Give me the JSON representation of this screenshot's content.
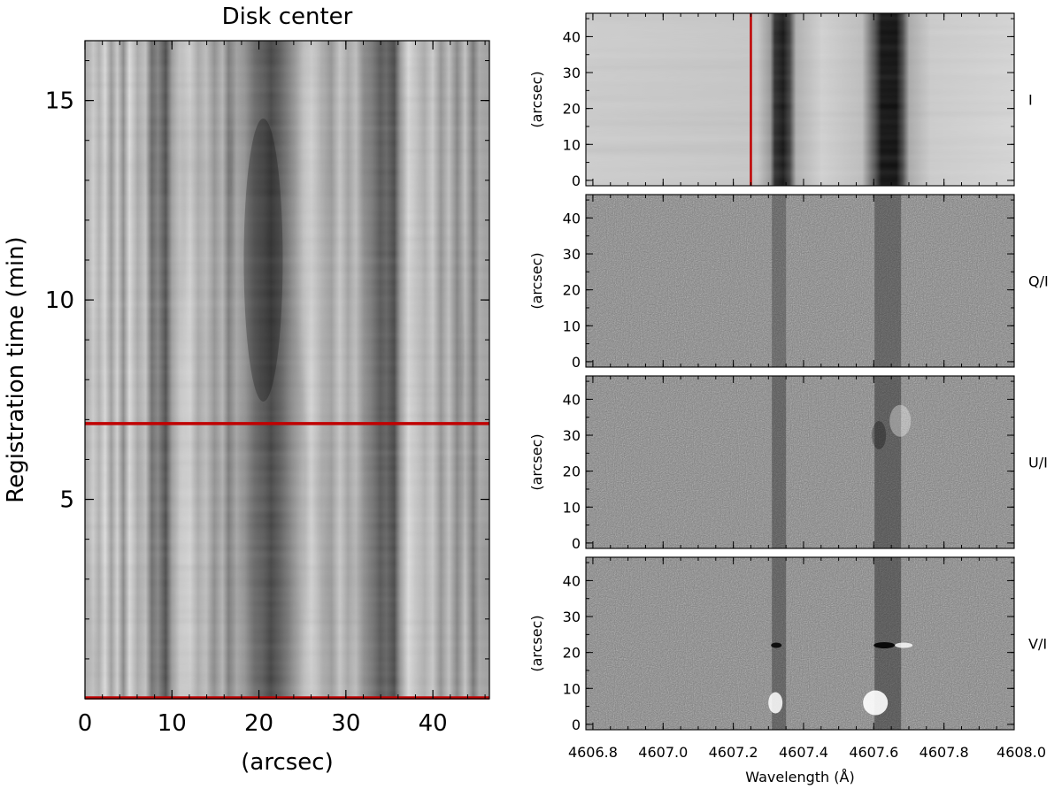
{
  "chart_data": [
    {
      "type": "heatmap",
      "title": "Disk center",
      "xlabel": "(arcsec)",
      "ylabel": "Registration time (min)",
      "xlim": [
        0,
        46.5
      ],
      "ylim": [
        0,
        16.5
      ],
      "xticks": [
        0,
        10,
        20,
        30,
        40
      ],
      "yticks": [
        5,
        10,
        15
      ],
      "xtick_labels": [
        "0",
        "10",
        "20",
        "30",
        "40"
      ],
      "ytick_labels": [
        "5",
        "10",
        "15"
      ],
      "colormap": "grayscale",
      "marker_lines": [
        {
          "orientation": "horizontal",
          "y": 6.9,
          "color": "#c00000"
        },
        {
          "orientation": "horizontal",
          "y": 0.0,
          "color": "#c00000"
        }
      ]
    },
    {
      "type": "heatmap",
      "panels": [
        {
          "label": "I",
          "ylabel": "(arcsec)"
        },
        {
          "label": "Q/I",
          "ylabel": "(arcsec)"
        },
        {
          "label": "U/I",
          "ylabel": "(arcsec)"
        },
        {
          "label": "V/I",
          "ylabel": "(arcsec)"
        }
      ],
      "xlabel": "Wavelength (Å)",
      "xlim": [
        4606.78,
        4608.0
      ],
      "ylim": [
        -1.5,
        46.5
      ],
      "xticks": [
        4606.8,
        4607.0,
        4607.2,
        4607.4,
        4607.6,
        4607.8,
        4608.0
      ],
      "xtick_labels": [
        "4606.8",
        "4607.0",
        "4607.2",
        "4607.4",
        "4607.6",
        "4607.8",
        "4608.0"
      ],
      "yticks": [
        0,
        10,
        20,
        30,
        40
      ],
      "ytick_labels": [
        "0",
        "10",
        "20",
        "30",
        "40"
      ],
      "spectral_lines": [
        4607.33,
        4607.64
      ],
      "colormap": "grayscale",
      "marker_lines": [
        {
          "panel": "I",
          "orientation": "vertical",
          "x": 4607.25,
          "color": "#c00000"
        }
      ]
    }
  ]
}
